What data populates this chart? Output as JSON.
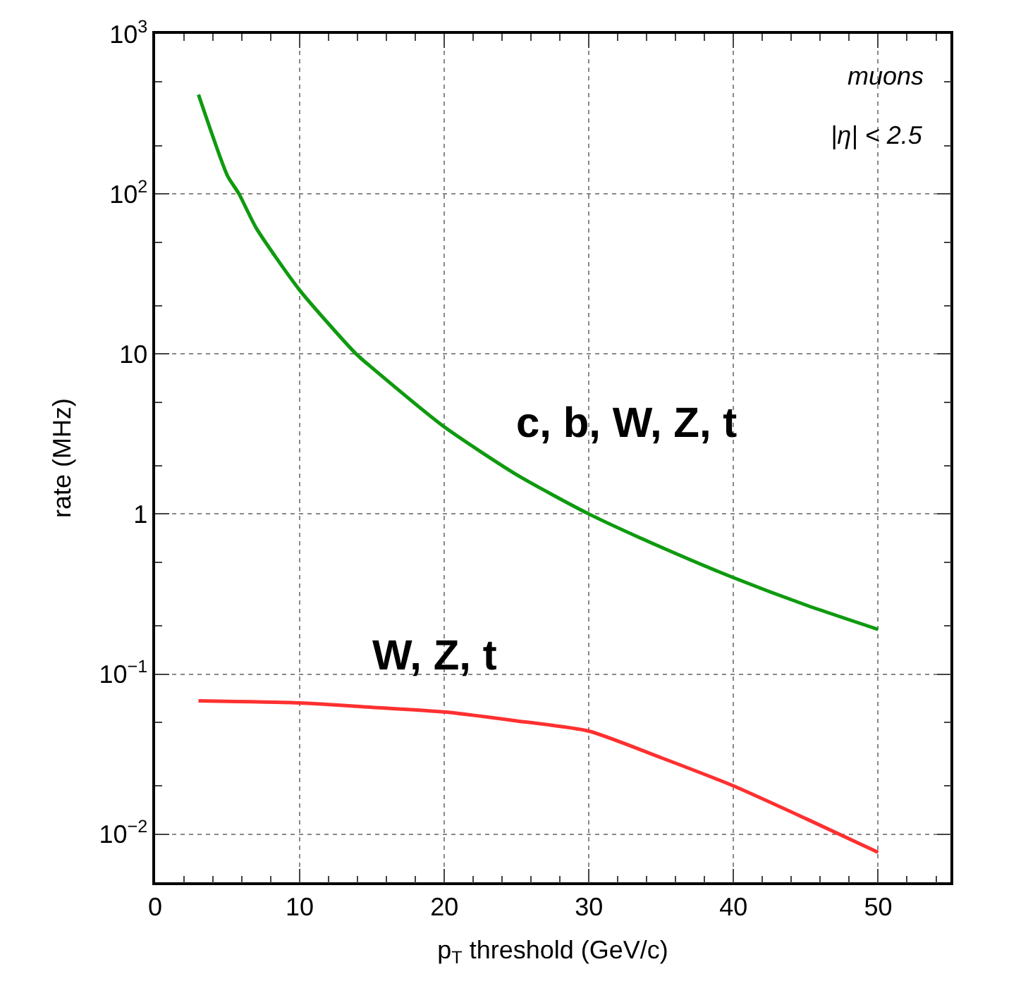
{
  "chart_data": {
    "type": "line",
    "xlabel": "p$_{T}$ threshold (GeV/c)",
    "ylabel": "rate (MHz)",
    "series": [
      {
        "name": "c, b, W, Z, t",
        "color": "#0f9a0f",
        "x": [
          3,
          5,
          5.8,
          7,
          10,
          13.9,
          15,
          20,
          25,
          30,
          35,
          40,
          45,
          50
        ],
        "values": [
          417,
          130,
          100,
          61,
          25,
          10,
          8.2,
          3.5,
          1.76,
          1.0,
          0.62,
          0.4,
          0.27,
          0.19
        ]
      },
      {
        "name": "W, Z, t",
        "color": "#ff3030",
        "x": [
          3,
          10,
          15,
          20,
          25,
          30,
          35,
          40,
          45,
          50
        ],
        "values": [
          0.068,
          0.066,
          0.062,
          0.058,
          0.051,
          0.044,
          0.03,
          0.02,
          0.0125,
          0.0077
        ]
      }
    ],
    "annotations": [
      "muons",
      "|η| < 2.5"
    ],
    "log": "y",
    "xlim": [
      0,
      55
    ],
    "xticks": [
      0,
      10,
      20,
      30,
      40,
      50
    ],
    "ylim": [
      0.005,
      1000
    ],
    "yticks": [
      {
        "value": 0.01,
        "label": "10$^{−2}$"
      },
      {
        "value": 0.1,
        "label": "10$^{−1}$"
      },
      1,
      10,
      {
        "value": 100,
        "label": "10$^{2}$"
      },
      {
        "value": 1000,
        "label": "10$^{3}$"
      }
    ],
    "grid": true,
    "line_style": "solid",
    "marker": "none",
    "legend": false
  }
}
